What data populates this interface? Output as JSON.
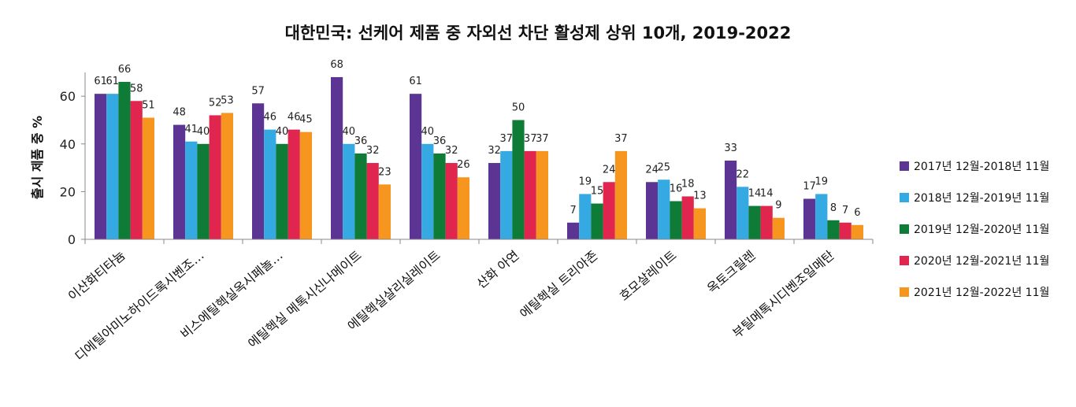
{
  "chart_data": {
    "type": "bar",
    "title": "대한민국: 선케어 제품 중 자외선 차단 활성제 상위 10개, 2019-2022",
    "ylabel": "출시 제품 중 %",
    "xlabel": "",
    "ylim": [
      0,
      70
    ],
    "yticks": [
      0,
      20,
      40,
      60
    ],
    "grid": false,
    "legend_position": "right",
    "categories": [
      "이산화티타늄",
      "디에틸아미노하이드록시벤조…",
      "비스에틸헥실옥시페놀…",
      "에틸헥실 메톡시신나메이트",
      "에틸헥실살리실레이트",
      "산화 아연",
      "에틸헥실 트리아존",
      "호모살레이트",
      "옥토크릴렌",
      "부틸메톡시디벤조일메탄"
    ],
    "series": [
      {
        "name": "2017년 12월-2018년 11월",
        "color": "#5B3494",
        "values": [
          61,
          48,
          57,
          68,
          61,
          32,
          7,
          24,
          33,
          17
        ]
      },
      {
        "name": "2018년 12월-2019년 11월",
        "color": "#35A9E1",
        "values": [
          61,
          41,
          46,
          40,
          40,
          37,
          19,
          25,
          22,
          19
        ]
      },
      {
        "name": "2019년 12월-2020년 11월",
        "color": "#0E7B36",
        "values": [
          66,
          40,
          40,
          36,
          36,
          50,
          15,
          16,
          14,
          8
        ]
      },
      {
        "name": "2020년 12월-2021년 11월",
        "color": "#E0264E",
        "values": [
          58,
          52,
          46,
          32,
          32,
          37,
          24,
          18,
          14,
          7
        ]
      },
      {
        "name": "2021년 12월-2022년 11월",
        "color": "#F7961E",
        "values": [
          51,
          53,
          45,
          23,
          26,
          37,
          37,
          13,
          9,
          6
        ]
      }
    ]
  }
}
